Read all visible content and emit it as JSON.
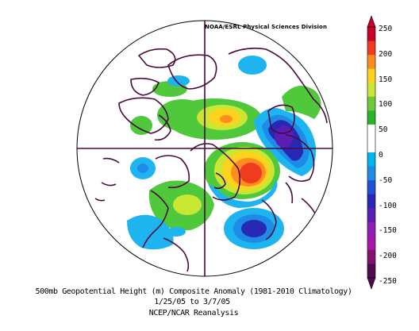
{
  "header": {
    "credit": "NOAA/ESRL Physical Sciences Division"
  },
  "caption": {
    "title": "500mb Geopotential Height (m) Composite Anomaly (1981-2010 Climatology)",
    "dates": "1/25/05  to 3/7/05",
    "source": "NCEP/NCAR Reanalysis"
  },
  "colorbar": {
    "labels": [
      "250",
      "200",
      "150",
      "100",
      "50",
      "0",
      "-50",
      "-100",
      "-150",
      "-200",
      "-250"
    ],
    "colors": [
      "#c8002a",
      "#f03c1e",
      "#ff8c1e",
      "#ffd21e",
      "#c8e632",
      "#6ec83c",
      "#28b428",
      "#ffffff",
      "#ffffff",
      "#00b4f0",
      "#1e8ce6",
      "#1e50d2",
      "#2828b4",
      "#5a1eb4",
      "#8c1eb4",
      "#aa14aa",
      "#82106e",
      "#500a50"
    ]
  },
  "map": {
    "projection": "north-polar-stereographic",
    "colors": {
      "outline": "#4a0a3c",
      "green": "#50c83c",
      "light_green": "#8cdc46",
      "yellow": "#ffd21e",
      "orange": "#ff8c1e",
      "red": "#f03c1e",
      "cyan": "#1eb4f0",
      "blue": "#1e8ce6",
      "dark_blue": "#2828b4",
      "purple": "#5a1eb4"
    }
  }
}
